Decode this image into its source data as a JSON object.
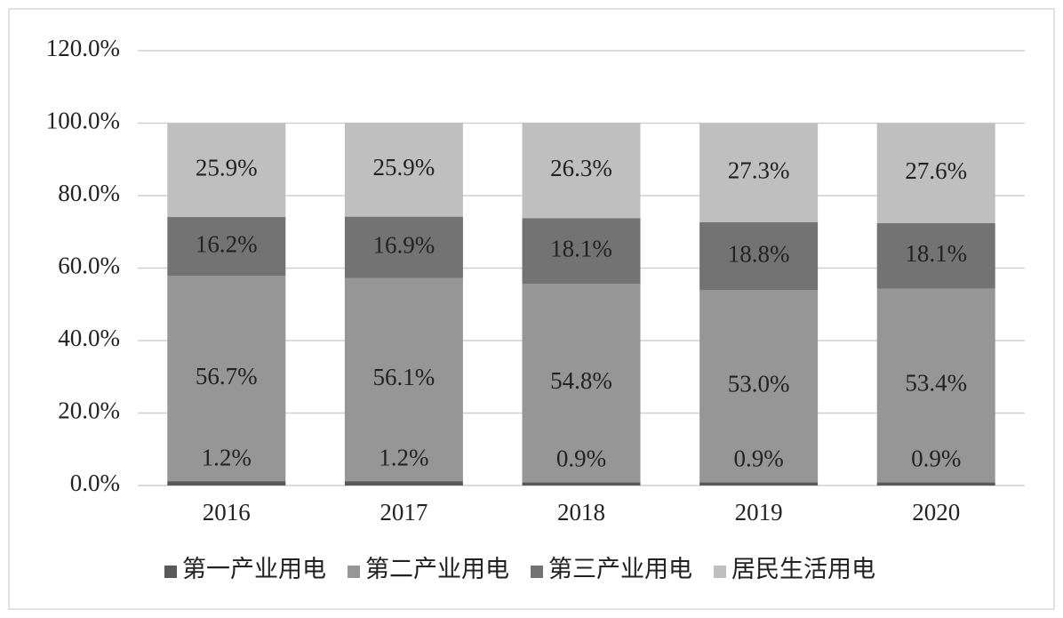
{
  "chart_data": {
    "type": "stacked-bar",
    "categories": [
      "2016",
      "2017",
      "2018",
      "2019",
      "2020"
    ],
    "series": [
      {
        "name": "第一产业用电",
        "color": "#595959",
        "values": [
          1.2,
          1.2,
          0.9,
          0.9,
          0.9
        ],
        "value_labels": [
          "1.2%",
          "1.2%",
          "0.9%",
          "0.9%",
          "0.9%"
        ]
      },
      {
        "name": "第二产业用电",
        "color": "#969696",
        "values": [
          56.7,
          56.1,
          54.8,
          53.0,
          53.4
        ],
        "value_labels": [
          "56.7%",
          "56.1%",
          "54.8%",
          "53.0%",
          "53.4%"
        ]
      },
      {
        "name": "第三产业用电",
        "color": "#737373",
        "values": [
          16.2,
          16.9,
          18.1,
          18.8,
          18.1
        ],
        "value_labels": [
          "16.2%",
          "16.9%",
          "18.1%",
          "18.8%",
          "18.1%"
        ]
      },
      {
        "name": "居民生活用电",
        "color": "#bfbfbf",
        "values": [
          25.9,
          25.9,
          26.3,
          27.3,
          27.6
        ],
        "value_labels": [
          "25.9%",
          "25.9%",
          "26.3%",
          "27.3%",
          "27.6%"
        ]
      }
    ],
    "ylim": [
      0,
      120
    ],
    "yticks": [
      {
        "value": 0,
        "label": "0.0%"
      },
      {
        "value": 20,
        "label": "20.0%"
      },
      {
        "value": 40,
        "label": "40.0%"
      },
      {
        "value": 60,
        "label": "60.0%"
      },
      {
        "value": 80,
        "label": "80.0%"
      },
      {
        "value": 100,
        "label": "100.0%"
      },
      {
        "value": 120,
        "label": "120.0%"
      }
    ],
    "grid": true,
    "legend": "bottom"
  }
}
